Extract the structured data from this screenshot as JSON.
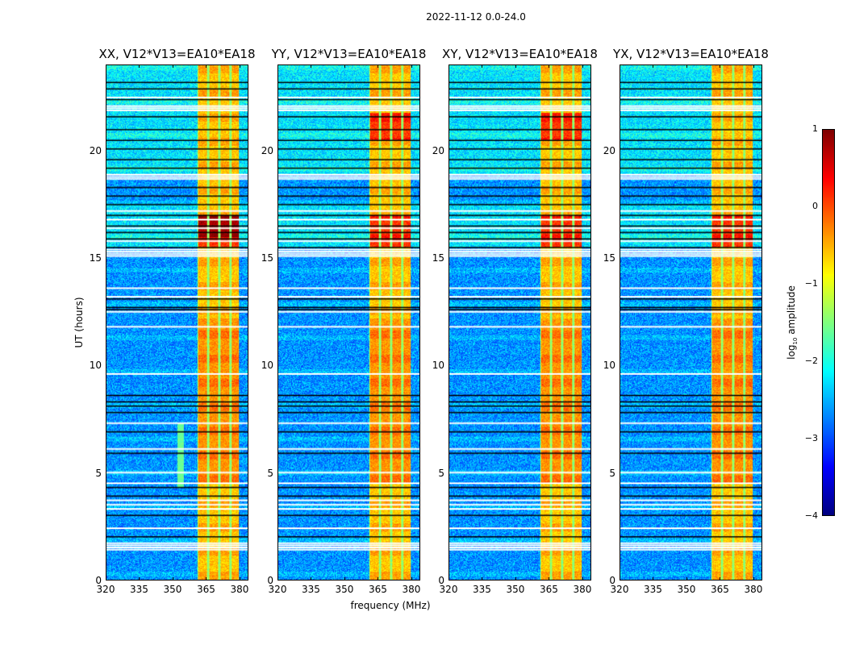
{
  "figure": {
    "suptitle": "2022-11-12 0.0-24.0"
  },
  "chart_data": {
    "type": "heatmap",
    "title": "2022-11-12 0.0-24.0",
    "xlabel": "frequency (MHz)",
    "ylabel": "UT (hours)",
    "xlim": [
      320,
      384
    ],
    "ylim": [
      0,
      24
    ],
    "xticks": [
      "320",
      "335",
      "350",
      "365",
      "380"
    ],
    "xtick_values": [
      320,
      335,
      350,
      365,
      380
    ],
    "yticks": [
      "0",
      "5",
      "10",
      "15",
      "20"
    ],
    "ytick_values": [
      0,
      5,
      10,
      15,
      20
    ],
    "colormap": "jet",
    "colorbar": {
      "label_prefix": "log",
      "label_sub": "10",
      "label_suffix": " amplitude",
      "range": [
        -4,
        1
      ],
      "ticks": [
        "1",
        "0",
        "−1",
        "−2",
        "−3",
        "−4"
      ],
      "tick_values": [
        1,
        0,
        -1,
        -2,
        -3,
        -4
      ]
    },
    "rfi_band_mhz": [
      361,
      380
    ],
    "rfi_subbands_mhz": [
      [
        361.5,
        365.5
      ],
      [
        366.5,
        370.5
      ],
      [
        371.5,
        375.5
      ],
      [
        376.5,
        380
      ]
    ],
    "flagged_rows_white_ut": [
      1.4,
      1.5,
      1.6,
      1.7,
      2.4,
      3.3,
      3.5,
      3.7,
      4.5,
      5.0,
      6.1,
      7.3,
      9.6,
      11.8,
      12.5,
      13.2,
      13.6,
      15.1,
      15.2,
      15.3,
      15.4,
      15.8,
      16.4,
      16.8,
      17.2,
      18.7,
      18.8,
      18.9,
      21.9,
      22.0,
      22.1,
      22.5
    ],
    "flagged_rows_black_ut": [
      2.0,
      3.0,
      3.9,
      4.3,
      5.9,
      6.9,
      7.8,
      8.1,
      8.3,
      8.6,
      12.6,
      12.7,
      13.1,
      15.5,
      15.9,
      16.2,
      16.5,
      17.0,
      17.5,
      17.9,
      18.3,
      19.2,
      19.6,
      20.1,
      20.5,
      21.0,
      21.6,
      22.4,
      22.9,
      23.2
    ],
    "panels": [
      {
        "title": "XX, V12*V13=EA10*EA18",
        "polarization": "XX",
        "peak_ut": [
          [
            15.5,
            17.0
          ],
          [
            16.0,
            17.0
          ]
        ]
      },
      {
        "title": "YY, V12*V13=EA10*EA18",
        "polarization": "YY",
        "peak_ut": [
          [
            15.5,
            17.0
          ],
          [
            20.5,
            21.8
          ]
        ]
      },
      {
        "title": "XY, V12*V13=EA10*EA18",
        "polarization": "XY",
        "peak_ut": [
          [
            15.5,
            17.0
          ],
          [
            20.5,
            21.8
          ]
        ]
      },
      {
        "title": "YX, V12*V13=EA10*EA18",
        "polarization": "YX",
        "peak_ut": [
          [
            15.5,
            17.0
          ]
        ]
      }
    ]
  }
}
